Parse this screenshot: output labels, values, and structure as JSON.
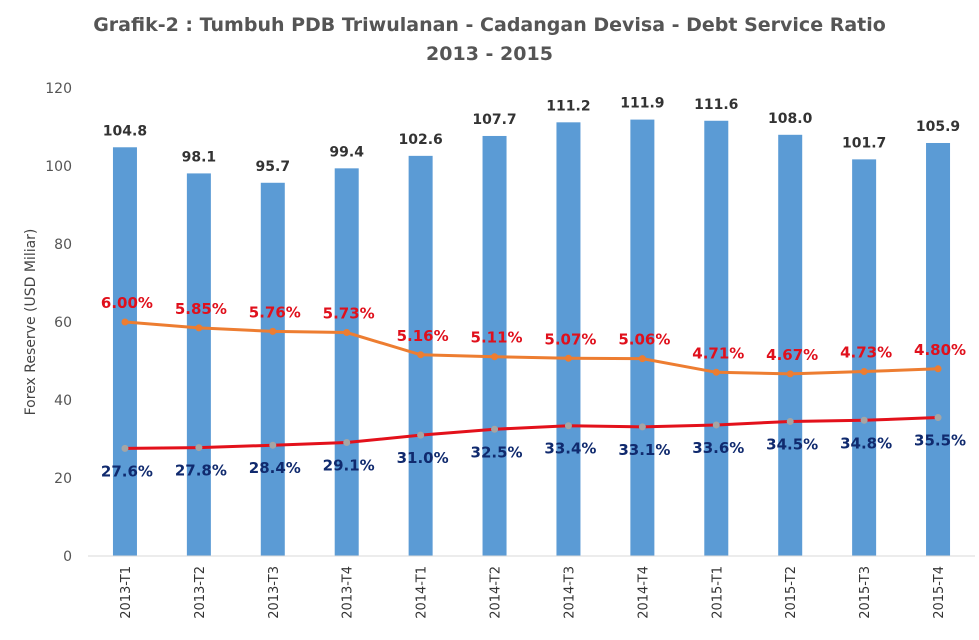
{
  "title": "Grafik-2 : Tumbuh PDB Triwulanan - Cadangan Devisa - Debt Service Ratio",
  "subtitle": "2013 - 2015",
  "colors": {
    "bars": "#5b9bd5",
    "dsr_line": "#ed7d31",
    "gdp_line": "#e3111b",
    "dsr_text": "#e0101c",
    "gdp_text": "#102a6e",
    "gdp_marker": "#a5a5a5",
    "axis": "#d9d9d9"
  },
  "chart_data": {
    "type": "bar",
    "title": "Grafik-2 : Tumbuh PDB Triwulanan - Cadangan Devisa - Debt Service Ratio",
    "subtitle": "2013 - 2015",
    "ylabel": "Forex Reserve (USD Miliar)",
    "ylim": [
      0,
      120
    ],
    "yticks": [
      "0",
      "20",
      "40",
      "60",
      "80",
      "100",
      "120"
    ],
    "grid": false,
    "categories": [
      "2013-T1",
      "2013-T2",
      "2013-T3",
      "2013-T4",
      "2014-T1",
      "2014-T2",
      "2014-T3",
      "2014-T4",
      "2015-T1",
      "2015-T2",
      "2015-T3",
      "2015-T4"
    ],
    "series": [
      {
        "type": "bar",
        "values": [
          104.8,
          98.1,
          95.7,
          99.4,
          102.6,
          107.7,
          111.2,
          111.9,
          111.6,
          108.0,
          101.7,
          105.9
        ],
        "labels": [
          "104.8",
          "98.1",
          "95.7",
          "99.4",
          "102.6",
          "107.7",
          "111.2",
          "111.9",
          "111.6",
          "108.0",
          "101.7",
          "105.9"
        ]
      },
      {
        "type": "line",
        "values": [
          6.0,
          5.85,
          5.76,
          5.73,
          5.16,
          5.11,
          5.07,
          5.06,
          4.71,
          4.67,
          4.73,
          4.8
        ],
        "labels": [
          "6.00%",
          "5.85%",
          "5.76%",
          "5.73%",
          "5.16%",
          "5.11%",
          "5.07%",
          "5.06%",
          "4.71%",
          "4.67%",
          "4.73%",
          "4.80%"
        ]
      },
      {
        "type": "line",
        "values": [
          27.6,
          27.8,
          28.4,
          29.1,
          31.0,
          32.5,
          33.4,
          33.1,
          33.6,
          34.5,
          34.8,
          35.5
        ],
        "labels": [
          "27.6%",
          "27.8%",
          "28.4%",
          "29.1%",
          "31.0%",
          "32.5%",
          "33.4%",
          "33.1%",
          "33.6%",
          "34.5%",
          "34.8%",
          "35.5%"
        ]
      }
    ]
  }
}
